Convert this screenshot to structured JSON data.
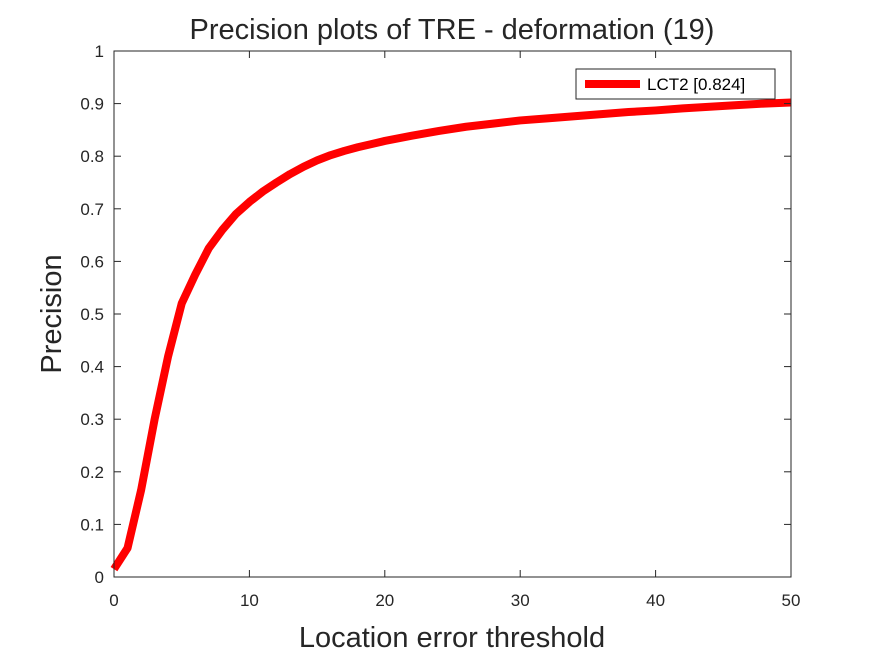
{
  "chart_data": {
    "type": "line",
    "title": "Precision plots of TRE - deformation (19)",
    "xlabel": "Location error threshold",
    "ylabel": "Precision",
    "xlim": [
      0,
      50
    ],
    "ylim": [
      0,
      1
    ],
    "xticks": [
      0,
      10,
      20,
      30,
      40,
      50
    ],
    "yticks": [
      0,
      0.1,
      0.2,
      0.3,
      0.4,
      0.5,
      0.6,
      0.7,
      0.8,
      0.9,
      1
    ],
    "xtick_labels": [
      "0",
      "10",
      "20",
      "30",
      "40",
      "50"
    ],
    "ytick_labels": [
      "0",
      "0.1",
      "0.2",
      "0.3",
      "0.4",
      "0.5",
      "0.6",
      "0.7",
      "0.8",
      "0.9",
      "1"
    ],
    "grid": false,
    "legend_position": "top-right",
    "series": [
      {
        "name": "LCT2 [0.824]",
        "color": "#ff0000",
        "x": [
          0,
          1,
          2,
          3,
          4,
          5,
          6,
          7,
          8,
          9,
          10,
          11,
          12,
          13,
          14,
          15,
          16,
          17,
          18,
          19,
          20,
          22,
          24,
          26,
          28,
          30,
          32,
          34,
          36,
          38,
          40,
          42,
          44,
          46,
          48,
          50
        ],
        "y": [
          0.015,
          0.055,
          0.165,
          0.3,
          0.42,
          0.52,
          0.575,
          0.625,
          0.66,
          0.69,
          0.713,
          0.733,
          0.75,
          0.766,
          0.78,
          0.792,
          0.802,
          0.81,
          0.817,
          0.823,
          0.829,
          0.839,
          0.848,
          0.856,
          0.862,
          0.868,
          0.872,
          0.876,
          0.88,
          0.884,
          0.887,
          0.891,
          0.894,
          0.897,
          0.9,
          0.902
        ]
      }
    ]
  }
}
